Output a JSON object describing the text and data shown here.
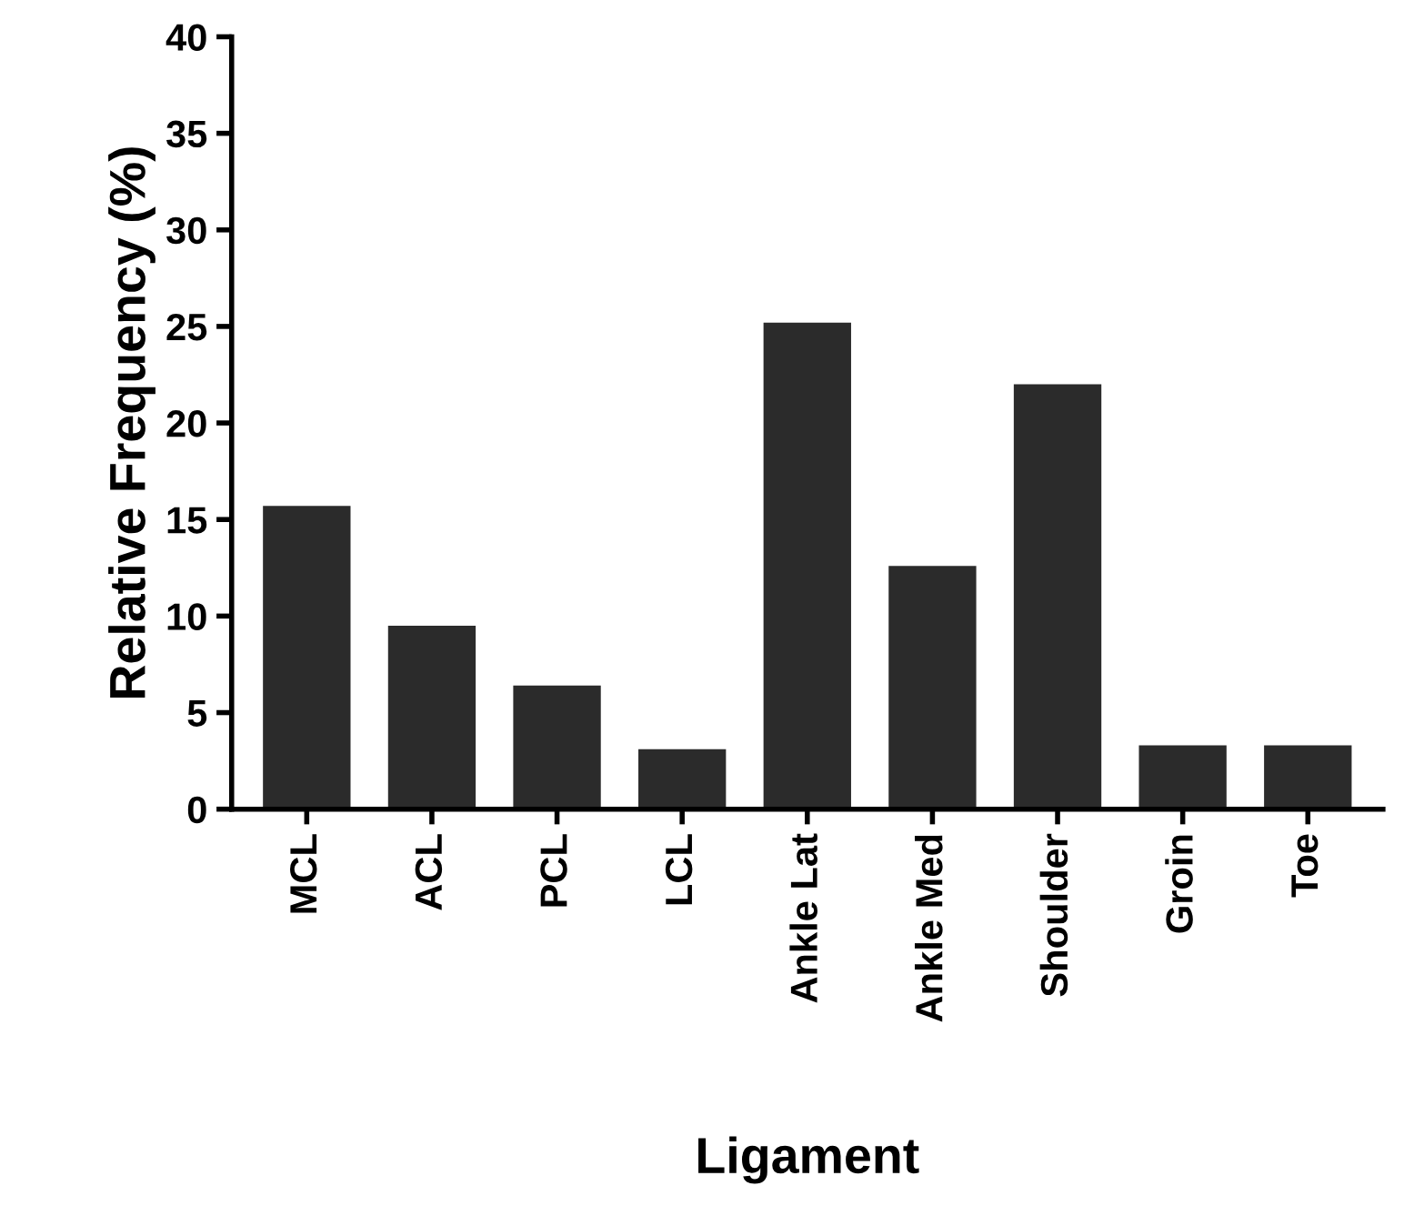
{
  "chart_data": {
    "type": "bar",
    "xlabel": "Ligament",
    "ylabel": "Relative Frequency (%)",
    "categories": [
      "MCL",
      "ACL",
      "PCL",
      "LCL",
      "Ankle Lat",
      "Ankle Med",
      "Shoulder",
      "Groin",
      "Toe"
    ],
    "values": [
      15.7,
      9.5,
      6.4,
      3.1,
      25.2,
      12.6,
      22.0,
      3.3,
      3.3
    ],
    "color": "#2b2b2b",
    "ylim": [
      0,
      40
    ],
    "yticks": [
      0,
      5,
      10,
      15,
      20,
      25,
      30,
      35,
      40
    ],
    "grid": false,
    "legend": false
  }
}
